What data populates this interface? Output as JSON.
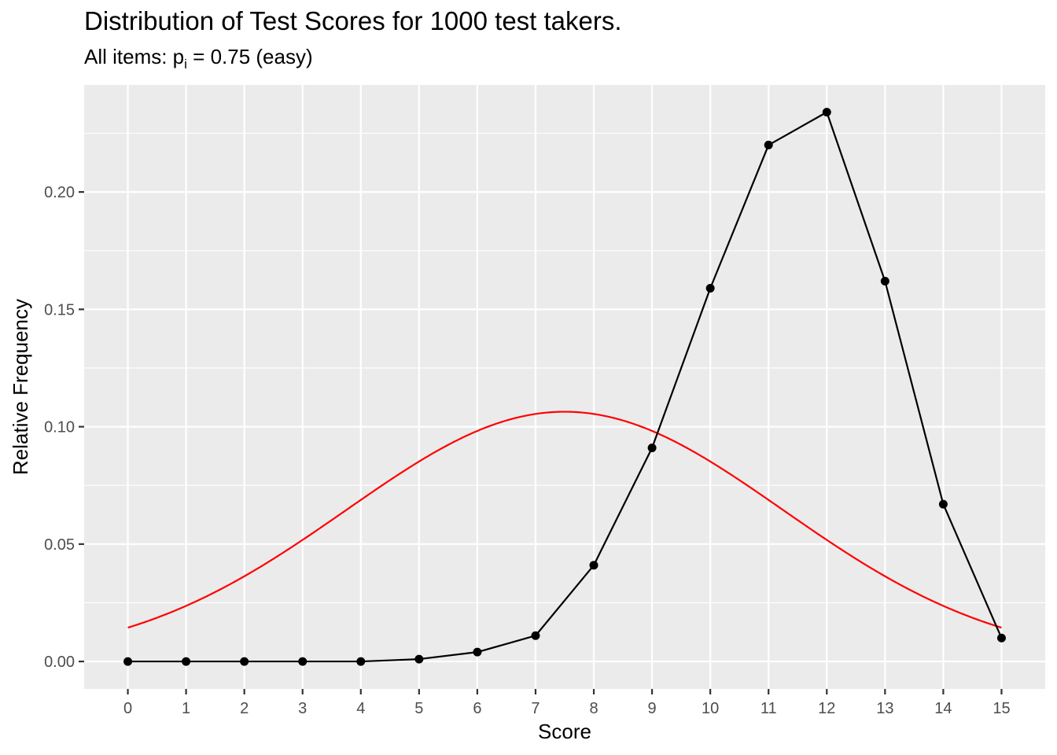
{
  "chart_data": {
    "type": "line",
    "title": "Distribution of Test Scores for 1000 test takers.",
    "subtitle": {
      "prefix": "All items: p",
      "subscript": "i",
      "suffix": " = 0.75 (easy)"
    },
    "xlabel": "Score",
    "ylabel": "Relative Frequency",
    "xlim": [
      -0.75,
      15.75
    ],
    "ylim": [
      -0.0117,
      0.2456
    ],
    "x_ticks": [
      0,
      1,
      2,
      3,
      4,
      5,
      6,
      7,
      8,
      9,
      10,
      11,
      12,
      13,
      14,
      15
    ],
    "y_ticks": [
      0.0,
      0.05,
      0.1,
      0.15,
      0.2
    ],
    "y_tick_labels": [
      "0.00",
      "0.05",
      "0.10",
      "0.15",
      "0.20"
    ],
    "grid": true,
    "panel_background": "#ebebeb",
    "grid_color": "#ffffff",
    "series": [
      {
        "kind": "line+points",
        "color": "#000000",
        "x": [
          0,
          1,
          2,
          3,
          4,
          5,
          6,
          7,
          8,
          9,
          10,
          11,
          12,
          13,
          14,
          15
        ],
        "values": [
          0.0,
          0.0,
          0.0,
          0.0,
          0.0,
          0.001,
          0.004,
          0.011,
          0.041,
          0.091,
          0.159,
          0.22,
          0.234,
          0.162,
          0.067,
          0.01
        ]
      },
      {
        "kind": "normal-curve",
        "color": "#ff0000",
        "mean": 7.5,
        "sd": 3.75,
        "x_range": [
          0,
          15
        ]
      }
    ]
  }
}
